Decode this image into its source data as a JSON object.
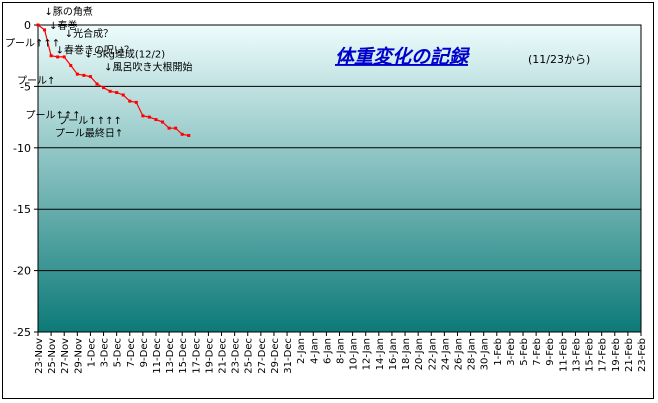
{
  "chart_data": {
    "type": "line",
    "title": "体重変化の記録",
    "subtitle": "(11/23から)",
    "xlabel": "",
    "ylabel": "",
    "ylim": [
      -25,
      0
    ],
    "yticks": [
      0,
      -5,
      -10,
      -15,
      -20,
      -25
    ],
    "grid": true,
    "legend": "none",
    "x_tick_labels": [
      "23-Nov",
      "25-Nov",
      "27-Nov",
      "29-Nov",
      "1-Dec",
      "3-Dec",
      "5-Dec",
      "7-Dec",
      "9-Dec",
      "11-Dec",
      "13-Dec",
      "15-Dec",
      "17-Dec",
      "19-Dec",
      "21-Dec",
      "23-Dec",
      "25-Dec",
      "27-Dec",
      "29-Dec",
      "31-Dec",
      "2-Jan",
      "4-Jan",
      "6-Jan",
      "8-Jan",
      "10-Jan",
      "12-Jan",
      "14-Jan",
      "16-Jan",
      "18-Jan",
      "20-Jan",
      "22-Jan",
      "24-Jan",
      "26-Jan",
      "28-Jan",
      "30-Jan",
      "1-Feb",
      "3-Feb",
      "5-Feb",
      "7-Feb",
      "9-Feb",
      "11-Feb",
      "13-Feb",
      "15-Feb",
      "17-Feb",
      "19-Feb",
      "21-Feb",
      "23-Feb"
    ],
    "series": [
      {
        "color": "#ff0000",
        "x": [
          "23-Nov",
          "24-Nov",
          "25-Nov",
          "26-Nov",
          "27-Nov",
          "28-Nov",
          "29-Nov",
          "30-Nov",
          "1-Dec",
          "2-Dec",
          "3-Dec",
          "4-Dec",
          "5-Dec",
          "6-Dec",
          "7-Dec",
          "8-Dec",
          "9-Dec",
          "10-Dec",
          "11-Dec",
          "12-Dec",
          "13-Dec",
          "14-Dec",
          "15-Dec",
          "16-Dec"
        ],
        "values": [
          0,
          -0.4,
          -2.5,
          -2.6,
          -2.6,
          -3.3,
          -4.0,
          -4.1,
          -4.2,
          -4.8,
          -5.1,
          -5.4,
          -5.5,
          -5.7,
          -6.2,
          -6.3,
          -7.4,
          -7.5,
          -7.7,
          -7.9,
          -8.4,
          -8.4,
          -8.9,
          -9.0
        ]
      }
    ],
    "annotations": [
      {
        "x": "24-Nov",
        "y": 0,
        "text": "↓豚の角煮"
      },
      {
        "x": "25-Nov",
        "y": -0.4,
        "text": "↓春巻"
      },
      {
        "x": "26-Nov",
        "y": -2.5,
        "text": "↓春巻きの呪い？"
      },
      {
        "x": "28-Nov",
        "y": -2.6,
        "text": "↓光合成？"
      },
      {
        "x": "1-Dec",
        "y": -4.2,
        "text": "↓-5kg達成(12/2)"
      },
      {
        "x": "4-Dec",
        "y": -5.1,
        "text": "↓風呂吹き大根開始"
      },
      {
        "x": "23-Nov",
        "y": -2.5,
        "text": "プール↑↑↑"
      },
      {
        "x": "23-Nov",
        "y": -4.0,
        "text": "プール↑"
      },
      {
        "x": "24-Nov",
        "y": -5.4,
        "text": "プール↑↑↑"
      },
      {
        "x": "29-Nov",
        "y": -6.2,
        "text": "プール↑↑↑↑"
      },
      {
        "x": "30-Nov",
        "y": -7.7,
        "text": "プール最終日↑"
      }
    ],
    "colors": {
      "plot_top": "#eefcfc",
      "plot_bottom": "#0c7a78",
      "line": "#ff0000",
      "title": "#0000cc"
    }
  }
}
